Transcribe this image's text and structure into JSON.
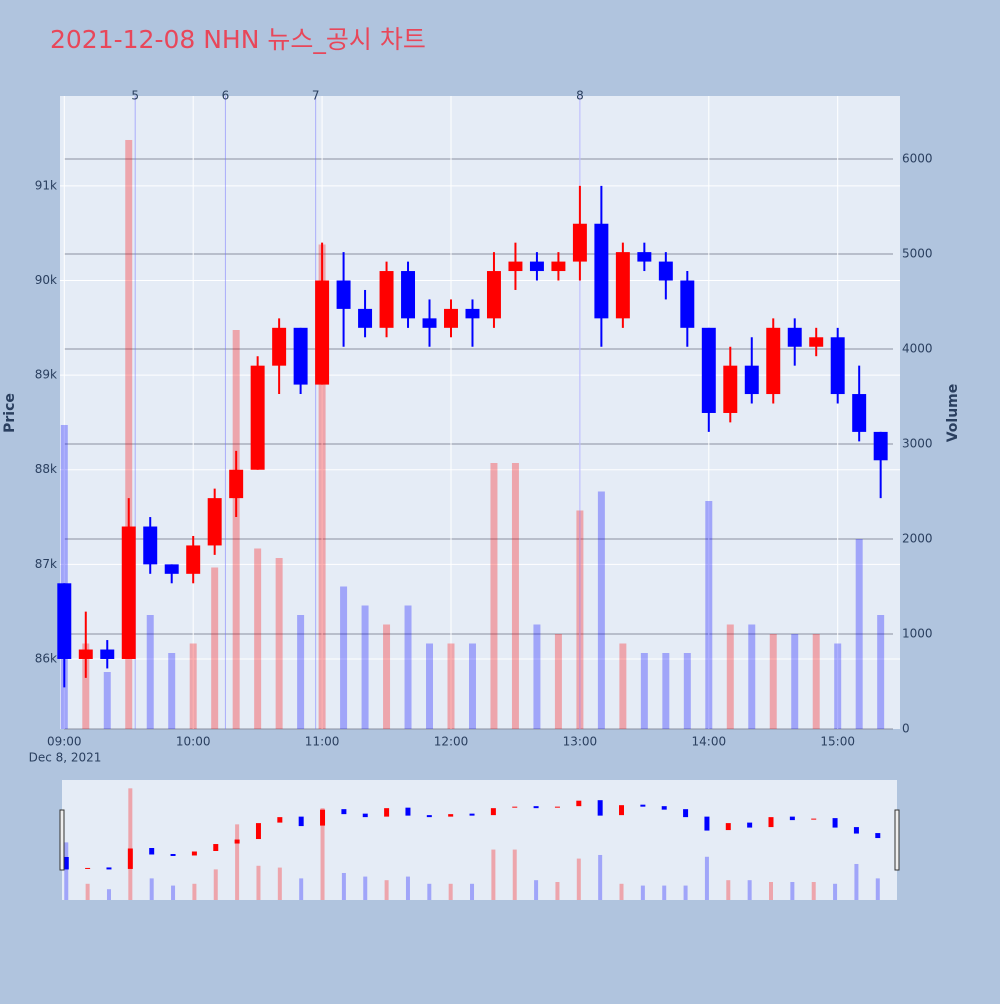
{
  "chart_data": {
    "type": "candlestick",
    "title": "2021-12-08 NHN 뉴스_공시 차트",
    "ylabel": "Price",
    "y2label": "Volume",
    "x_date_label": "Dec 8, 2021",
    "up_color": "#ff0000",
    "down_color": "#0000ff",
    "x": [
      "2021-12-08 09:00",
      "2021-12-08 09:10",
      "2021-12-08 09:20",
      "2021-12-08 09:30",
      "2021-12-08 09:40",
      "2021-12-08 09:50",
      "2021-12-08 10:00",
      "2021-12-08 10:10",
      "2021-12-08 10:20",
      "2021-12-08 10:30",
      "2021-12-08 10:40",
      "2021-12-08 10:50",
      "2021-12-08 11:00",
      "2021-12-08 11:10",
      "2021-12-08 11:20",
      "2021-12-08 11:30",
      "2021-12-08 11:40",
      "2021-12-08 11:50",
      "2021-12-08 12:00",
      "2021-12-08 12:10",
      "2021-12-08 12:20",
      "2021-12-08 12:30",
      "2021-12-08 12:40",
      "2021-12-08 12:50",
      "2021-12-08 13:00",
      "2021-12-08 13:10",
      "2021-12-08 13:20",
      "2021-12-08 13:30",
      "2021-12-08 13:40",
      "2021-12-08 13:50",
      "2021-12-08 14:00",
      "2021-12-08 14:10",
      "2021-12-08 14:20",
      "2021-12-08 14:30",
      "2021-12-08 14:40",
      "2021-12-08 14:50",
      "2021-12-08 15:00",
      "2021-12-08 15:10",
      "2021-12-08 15:20"
    ],
    "open": [
      86800,
      86000,
      86100,
      86000,
      87400,
      87000,
      86900,
      87200,
      87700,
      88000,
      89100,
      89500,
      88900,
      90000,
      89700,
      89500,
      90100,
      89600,
      89500,
      89700,
      89600,
      90100,
      90200,
      90100,
      90200,
      90600,
      89600,
      90300,
      90200,
      90000,
      89500,
      88600,
      89100,
      88800,
      89500,
      89300,
      89400,
      88800,
      88400
    ],
    "high": [
      86800,
      86500,
      86200,
      87700,
      87500,
      87000,
      87300,
      87800,
      88200,
      89200,
      89600,
      89500,
      90400,
      90300,
      89900,
      90200,
      90200,
      89800,
      89800,
      89800,
      90300,
      90400,
      90300,
      90300,
      91000,
      91000,
      90400,
      90400,
      90300,
      90100,
      89500,
      89300,
      89400,
      89600,
      89600,
      89500,
      89500,
      89100,
      88400
    ],
    "low": [
      85700,
      85800,
      85900,
      86000,
      86900,
      86800,
      86800,
      87100,
      87500,
      88000,
      88800,
      88800,
      88900,
      89300,
      89400,
      89400,
      89500,
      89300,
      89400,
      89300,
      89500,
      89900,
      90000,
      90000,
      90000,
      89300,
      89500,
      90100,
      89800,
      89300,
      88400,
      88500,
      88700,
      88700,
      89100,
      89200,
      88700,
      88300,
      87700
    ],
    "close": [
      86000,
      86100,
      86000,
      87400,
      87000,
      86900,
      87200,
      87700,
      88000,
      89100,
      89500,
      88900,
      90000,
      89700,
      89500,
      90100,
      89600,
      89500,
      89700,
      89600,
      90100,
      90200,
      90100,
      90200,
      90600,
      89600,
      90300,
      90200,
      90000,
      89500,
      88600,
      89100,
      88800,
      89500,
      89300,
      89400,
      88800,
      88400,
      88100
    ],
    "volume": [
      3200,
      900,
      600,
      6200,
      1200,
      800,
      900,
      1700,
      4200,
      1900,
      1800,
      1200,
      5100,
      1500,
      1300,
      1100,
      1300,
      900,
      900,
      900,
      2800,
      2800,
      1100,
      1000,
      2300,
      2500,
      900,
      800,
      800,
      800,
      2400,
      1100,
      1100,
      1000,
      1000,
      1000,
      900,
      2000,
      1200
    ],
    "news": [
      {
        "x": "2021-12-08 09:33",
        "label": "5"
      },
      {
        "x": "2021-12-08 10:15",
        "label": "6"
      },
      {
        "x": "2021-12-08 10:57",
        "label": "7"
      },
      {
        "x": "2021-12-08 13:00",
        "label": "8"
      }
    ],
    "xlim": [
      "2021-12-08 08:58",
      "2021-12-08 15:29"
    ],
    "xticks": [
      {
        "value": "2021-12-08 09:00",
        "label": "09:00"
      },
      {
        "value": "2021-12-08 10:00",
        "label": "10:00"
      },
      {
        "value": "2021-12-08 11:00",
        "label": "11:00"
      },
      {
        "value": "2021-12-08 12:00",
        "label": "12:00"
      },
      {
        "value": "2021-12-08 13:00",
        "label": "13:00"
      },
      {
        "value": "2021-12-08 14:00",
        "label": "14:00"
      },
      {
        "value": "2021-12-08 15:00",
        "label": "15:00"
      }
    ],
    "ylim": [
      85260,
      91950
    ],
    "yticks": [
      {
        "value": 86000,
        "label": "86k"
      },
      {
        "value": 87000,
        "label": "87k"
      },
      {
        "value": 88000,
        "label": "88k"
      },
      {
        "value": 89000,
        "label": "89k"
      },
      {
        "value": 90000,
        "label": "90k"
      },
      {
        "value": 91000,
        "label": "91k"
      }
    ],
    "y2lim": [
      0,
      6663
    ],
    "y2ticks": [
      0,
      1000,
      2000,
      3000,
      4000,
      5000,
      6000
    ]
  }
}
